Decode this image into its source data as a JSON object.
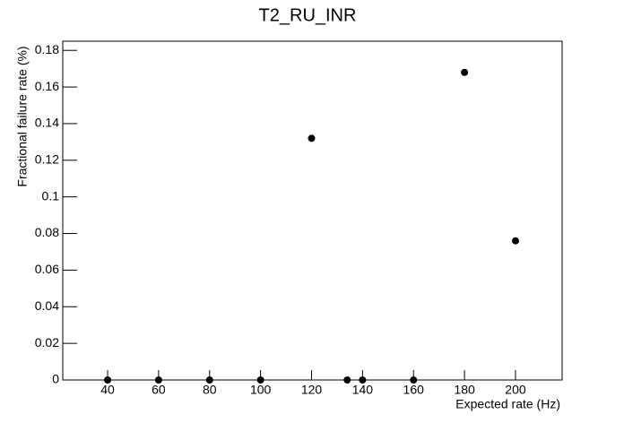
{
  "chart_data": {
    "type": "scatter",
    "title": "T2_RU_INR",
    "x_label": "Expected rate (Hz)",
    "y_label": "Fractional failure rate (%)",
    "series": [
      {
        "color": "#000000",
        "x": [
          40,
          60,
          80,
          100,
          120,
          134,
          140,
          160,
          180,
          200
        ],
        "values": [
          0,
          0,
          0,
          0,
          0.132,
          0,
          0,
          0,
          0.168,
          0.076
        ]
      }
    ],
    "xlim": [
      22.4,
      218.3
    ],
    "xticks": [
      40,
      60,
      80,
      100,
      120,
      140,
      160,
      180,
      200
    ],
    "ylim": [
      0,
      0.185
    ],
    "yticks": [
      0,
      0.02,
      0.04,
      0.06,
      0.08,
      0.1,
      0.12,
      0.14,
      0.16,
      0.18
    ],
    "grid": false
  }
}
